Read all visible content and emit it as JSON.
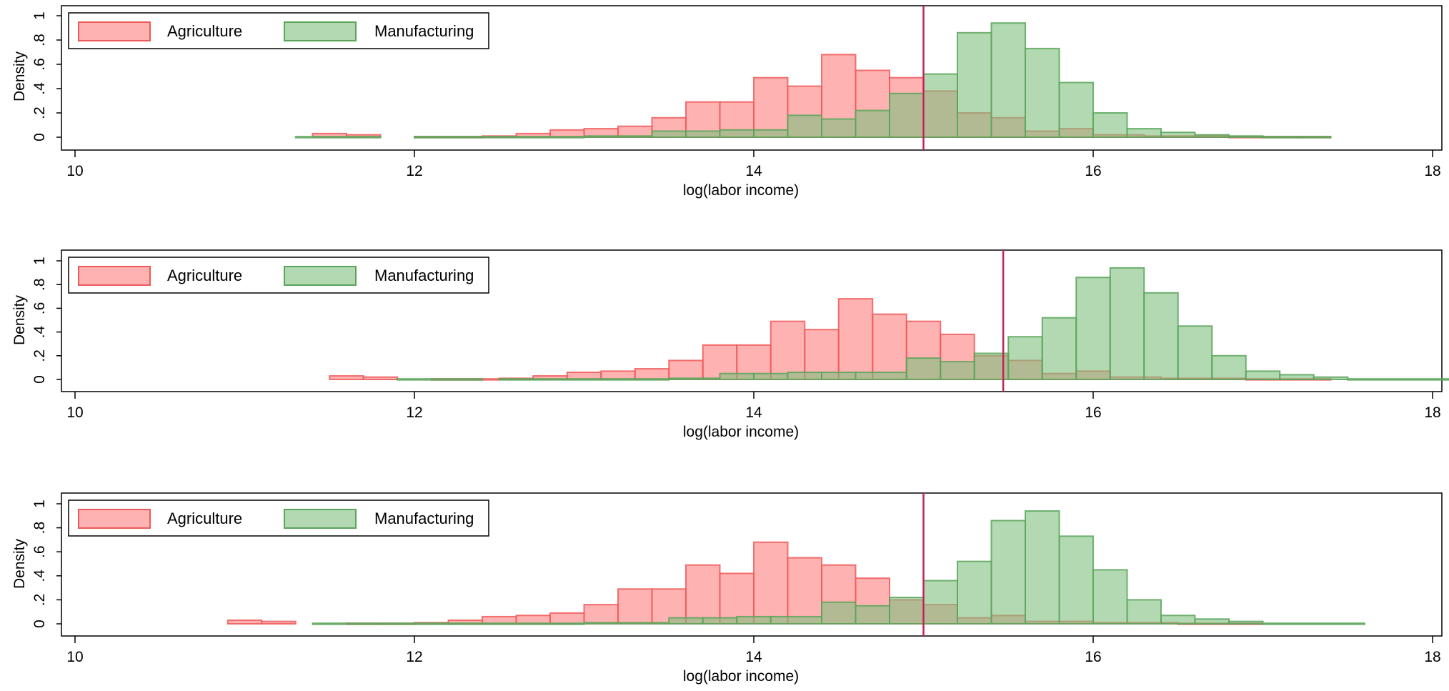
{
  "colors": {
    "agriculture_fill": "#ff7f7f",
    "agriculture_stroke": "#ee5a5a",
    "manufacturing_fill": "#7fbf7f",
    "manufacturing_stroke": "#5aa55a",
    "vline": "#c0245a"
  },
  "chart_data": [
    {
      "type": "bar",
      "panel": "top",
      "xlabel": "log(labor income)",
      "ylabel": "Density",
      "xlim": [
        10,
        18
      ],
      "ylim": [
        0,
        1
      ],
      "xticks": [
        10,
        12,
        14,
        16,
        18
      ],
      "yticks": [
        0,
        0.2,
        0.4,
        0.6,
        0.8,
        1
      ],
      "ytick_labels": [
        "0",
        ".2",
        ".4",
        ".6",
        ".8",
        "1"
      ],
      "vline": 15.0,
      "legend": {
        "position": "top-left",
        "entries": [
          "Agriculture",
          "Manufacturing"
        ]
      },
      "series": [
        {
          "name": "Agriculture",
          "bins": [
            [
              11.4,
              11.6,
              0.03
            ],
            [
              11.6,
              11.8,
              0.02
            ],
            [
              12.0,
              12.4,
              0.005
            ],
            [
              12.4,
              12.6,
              0.01
            ],
            [
              12.6,
              12.8,
              0.03
            ],
            [
              12.8,
              13.0,
              0.06
            ],
            [
              13.0,
              13.2,
              0.07
            ],
            [
              13.2,
              13.4,
              0.09
            ],
            [
              13.4,
              13.6,
              0.16
            ],
            [
              13.6,
              13.8,
              0.29
            ],
            [
              13.8,
              14.0,
              0.29
            ],
            [
              14.0,
              14.2,
              0.49
            ],
            [
              14.2,
              14.4,
              0.42
            ],
            [
              14.4,
              14.6,
              0.68
            ],
            [
              14.6,
              14.8,
              0.55
            ],
            [
              14.8,
              15.0,
              0.49
            ],
            [
              15.0,
              15.2,
              0.38
            ],
            [
              15.2,
              15.4,
              0.2
            ],
            [
              15.4,
              15.6,
              0.16
            ],
            [
              15.6,
              15.8,
              0.05
            ],
            [
              15.8,
              16.0,
              0.07
            ],
            [
              16.0,
              16.3,
              0.02
            ],
            [
              16.3,
              16.8,
              0.01
            ],
            [
              16.8,
              17.2,
              0.005
            ],
            [
              17.2,
              17.4,
              0.005
            ]
          ]
        },
        {
          "name": "Manufacturing",
          "bins": [
            [
              11.3,
              11.8,
              0.005
            ],
            [
              12.0,
              13.0,
              0.005
            ],
            [
              13.0,
              13.4,
              0.01
            ],
            [
              13.4,
              13.6,
              0.05
            ],
            [
              13.6,
              13.8,
              0.05
            ],
            [
              13.8,
              14.0,
              0.06
            ],
            [
              14.0,
              14.2,
              0.06
            ],
            [
              14.2,
              14.4,
              0.18
            ],
            [
              14.4,
              14.6,
              0.15
            ],
            [
              14.6,
              14.8,
              0.22
            ],
            [
              14.8,
              15.0,
              0.36
            ],
            [
              15.0,
              15.2,
              0.52
            ],
            [
              15.2,
              15.4,
              0.86
            ],
            [
              15.4,
              15.6,
              0.94
            ],
            [
              15.6,
              15.8,
              0.73
            ],
            [
              15.8,
              16.0,
              0.45
            ],
            [
              16.0,
              16.2,
              0.2
            ],
            [
              16.2,
              16.4,
              0.07
            ],
            [
              16.4,
              16.6,
              0.04
            ],
            [
              16.6,
              16.8,
              0.02
            ],
            [
              16.8,
              17.0,
              0.01
            ],
            [
              17.0,
              17.4,
              0.005
            ]
          ]
        }
      ]
    },
    {
      "type": "bar",
      "panel": "middle",
      "xlabel": "log(labor income)",
      "ylabel": "Density",
      "xlim": [
        10,
        18
      ],
      "ylim": [
        0,
        1
      ],
      "xticks": [
        10,
        12,
        14,
        16,
        18
      ],
      "yticks": [
        0,
        0.2,
        0.4,
        0.6,
        0.8,
        1
      ],
      "ytick_labels": [
        "0",
        ".2",
        ".4",
        ".6",
        ".8",
        "1"
      ],
      "vline": 15.47,
      "legend": {
        "position": "top-left",
        "entries": [
          "Agriculture",
          "Manufacturing"
        ]
      },
      "series": [
        {
          "name": "Agriculture",
          "bins": [
            [
              11.5,
              11.7,
              0.03
            ],
            [
              11.7,
              11.9,
              0.02
            ],
            [
              12.1,
              12.5,
              0.005
            ],
            [
              12.5,
              12.7,
              0.01
            ],
            [
              12.7,
              12.9,
              0.03
            ],
            [
              12.9,
              13.1,
              0.06
            ],
            [
              13.1,
              13.3,
              0.07
            ],
            [
              13.3,
              13.5,
              0.09
            ],
            [
              13.5,
              13.7,
              0.16
            ],
            [
              13.7,
              13.9,
              0.29
            ],
            [
              13.9,
              14.1,
              0.29
            ],
            [
              14.1,
              14.3,
              0.49
            ],
            [
              14.3,
              14.5,
              0.42
            ],
            [
              14.5,
              14.7,
              0.68
            ],
            [
              14.7,
              14.9,
              0.55
            ],
            [
              14.9,
              15.1,
              0.49
            ],
            [
              15.1,
              15.3,
              0.38
            ],
            [
              15.3,
              15.5,
              0.2
            ],
            [
              15.5,
              15.7,
              0.16
            ],
            [
              15.7,
              15.9,
              0.05
            ],
            [
              15.9,
              16.1,
              0.07
            ],
            [
              16.1,
              16.4,
              0.02
            ],
            [
              16.4,
              16.9,
              0.01
            ],
            [
              16.9,
              17.4,
              0.005
            ]
          ]
        },
        {
          "name": "Manufacturing",
          "bins": [
            [
              11.9,
              12.4,
              0.005
            ],
            [
              12.5,
              13.5,
              0.005
            ],
            [
              13.5,
              13.8,
              0.01
            ],
            [
              13.8,
              14.0,
              0.05
            ],
            [
              14.0,
              14.2,
              0.05
            ],
            [
              14.2,
              14.4,
              0.06
            ],
            [
              14.4,
              14.6,
              0.06
            ],
            [
              14.6,
              14.9,
              0.06
            ],
            [
              14.9,
              15.1,
              0.18
            ],
            [
              15.1,
              15.3,
              0.15
            ],
            [
              15.3,
              15.5,
              0.22
            ],
            [
              15.5,
              15.7,
              0.36
            ],
            [
              15.7,
              15.9,
              0.52
            ],
            [
              15.9,
              16.1,
              0.86
            ],
            [
              16.1,
              16.3,
              0.94
            ],
            [
              16.3,
              16.5,
              0.73
            ],
            [
              16.5,
              16.7,
              0.45
            ],
            [
              16.7,
              16.9,
              0.2
            ],
            [
              16.9,
              17.1,
              0.07
            ],
            [
              17.1,
              17.3,
              0.04
            ],
            [
              17.3,
              17.5,
              0.02
            ],
            [
              17.5,
              18.1,
              0.005
            ]
          ]
        }
      ]
    },
    {
      "type": "bar",
      "panel": "bottom",
      "xlabel": "log(labor income)",
      "ylabel": "Density",
      "xlim": [
        10,
        18
      ],
      "ylim": [
        0,
        1
      ],
      "xticks": [
        10,
        12,
        14,
        16,
        18
      ],
      "yticks": [
        0,
        0.2,
        0.4,
        0.6,
        0.8,
        1
      ],
      "ytick_labels": [
        "0",
        ".2",
        ".4",
        ".6",
        ".8",
        "1"
      ],
      "vline": 15.0,
      "legend": {
        "position": "top-left",
        "entries": [
          "Agriculture",
          "Manufacturing"
        ]
      },
      "series": [
        {
          "name": "Agriculture",
          "bins": [
            [
              10.9,
              11.1,
              0.03
            ],
            [
              11.1,
              11.3,
              0.02
            ],
            [
              11.6,
              12.0,
              0.005
            ],
            [
              12.0,
              12.2,
              0.01
            ],
            [
              12.2,
              12.4,
              0.03
            ],
            [
              12.4,
              12.6,
              0.06
            ],
            [
              12.6,
              12.8,
              0.07
            ],
            [
              12.8,
              13.0,
              0.09
            ],
            [
              13.0,
              13.2,
              0.16
            ],
            [
              13.2,
              13.4,
              0.29
            ],
            [
              13.4,
              13.6,
              0.29
            ],
            [
              13.6,
              13.8,
              0.49
            ],
            [
              13.8,
              14.0,
              0.42
            ],
            [
              14.0,
              14.2,
              0.68
            ],
            [
              14.2,
              14.4,
              0.55
            ],
            [
              14.4,
              14.6,
              0.49
            ],
            [
              14.6,
              14.8,
              0.38
            ],
            [
              14.8,
              15.0,
              0.2
            ],
            [
              15.0,
              15.2,
              0.16
            ],
            [
              15.2,
              15.4,
              0.05
            ],
            [
              15.4,
              15.6,
              0.07
            ],
            [
              15.6,
              16.0,
              0.02
            ],
            [
              16.0,
              16.5,
              0.01
            ],
            [
              16.5,
              17.0,
              0.005
            ]
          ]
        },
        {
          "name": "Manufacturing",
          "bins": [
            [
              11.4,
              11.8,
              0.005
            ],
            [
              11.8,
              12.2,
              0.005
            ],
            [
              12.2,
              13.0,
              0.005
            ],
            [
              13.0,
              13.5,
              0.01
            ],
            [
              13.5,
              13.7,
              0.05
            ],
            [
              13.7,
              13.9,
              0.05
            ],
            [
              13.9,
              14.1,
              0.06
            ],
            [
              14.1,
              14.4,
              0.06
            ],
            [
              14.4,
              14.6,
              0.18
            ],
            [
              14.6,
              14.8,
              0.15
            ],
            [
              14.8,
              15.0,
              0.22
            ],
            [
              15.0,
              15.2,
              0.36
            ],
            [
              15.2,
              15.4,
              0.52
            ],
            [
              15.4,
              15.6,
              0.86
            ],
            [
              15.6,
              15.8,
              0.94
            ],
            [
              15.8,
              16.0,
              0.73
            ],
            [
              16.0,
              16.2,
              0.45
            ],
            [
              16.2,
              16.4,
              0.2
            ],
            [
              16.4,
              16.6,
              0.07
            ],
            [
              16.6,
              16.8,
              0.04
            ],
            [
              16.8,
              17.0,
              0.02
            ],
            [
              17.0,
              17.6,
              0.005
            ]
          ]
        }
      ]
    }
  ]
}
